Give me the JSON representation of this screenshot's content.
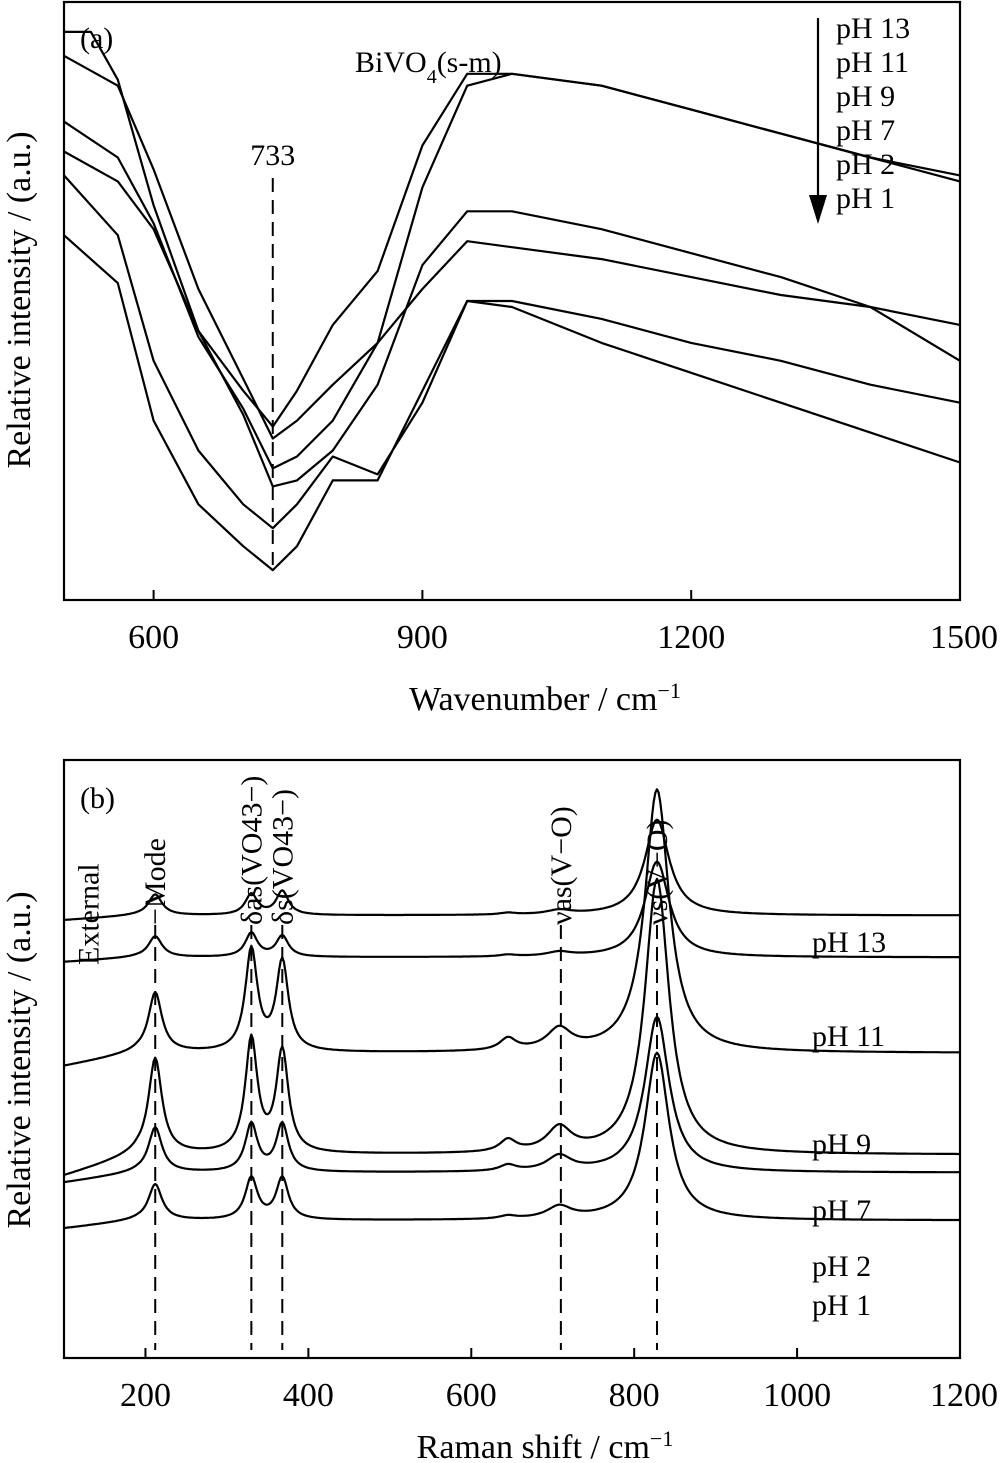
{
  "chart_data": [
    {
      "panel_label": "(a)",
      "type": "line",
      "title": "BiVO4(s-m)",
      "xlabel": "Wavenumber / cm−1",
      "ylabel": "Relative intensity / (a.u.)",
      "xlim": [
        500,
        1500
      ],
      "xticks": [
        "600",
        "900",
        "1200",
        "1500"
      ],
      "y_ticks_shown": false,
      "legend_arrow": [
        "pH 13",
        "pH 11",
        "pH 9",
        "pH 7",
        "pH 2",
        "pH 1"
      ],
      "annotations": [
        {
          "text": "733",
          "x": 733
        }
      ],
      "series": [
        {
          "values": [
            [
              500,
              0.95
            ],
            [
              530,
              0.95
            ],
            [
              560,
              0.87
            ],
            [
              600,
              0.66
            ],
            [
              650,
              0.45
            ],
            [
              700,
              0.35
            ],
            [
              733,
              0.29
            ],
            [
              760,
              0.35
            ],
            [
              800,
              0.46
            ],
            [
              850,
              0.55
            ],
            [
              900,
              0.76
            ],
            [
              950,
              0.88
            ],
            [
              1000,
              0.88
            ],
            [
              1100,
              0.86
            ],
            [
              1200,
              0.82
            ],
            [
              1300,
              0.78
            ],
            [
              1400,
              0.74
            ],
            [
              1500,
              0.71
            ]
          ]
        },
        {
          "values": [
            [
              500,
              0.91
            ],
            [
              560,
              0.86
            ],
            [
              600,
              0.72
            ],
            [
              650,
              0.52
            ],
            [
              700,
              0.37
            ],
            [
              733,
              0.27
            ],
            [
              760,
              0.3
            ],
            [
              800,
              0.36
            ],
            [
              850,
              0.43
            ],
            [
              900,
              0.69
            ],
            [
              950,
              0.86
            ],
            [
              1000,
              0.88
            ],
            [
              1100,
              0.86
            ],
            [
              1200,
              0.82
            ],
            [
              1300,
              0.78
            ],
            [
              1400,
              0.74
            ],
            [
              1500,
              0.7
            ]
          ]
        },
        {
          "values": [
            [
              500,
              0.8
            ],
            [
              560,
              0.74
            ],
            [
              600,
              0.63
            ],
            [
              650,
              0.44
            ],
            [
              700,
              0.32
            ],
            [
              733,
              0.22
            ],
            [
              760,
              0.24
            ],
            [
              800,
              0.3
            ],
            [
              850,
              0.43
            ],
            [
              900,
              0.52
            ],
            [
              950,
              0.6
            ],
            [
              1000,
              0.59
            ],
            [
              1100,
              0.57
            ],
            [
              1200,
              0.54
            ],
            [
              1300,
              0.51
            ],
            [
              1400,
              0.49
            ],
            [
              1500,
              0.46
            ]
          ]
        },
        {
          "values": [
            [
              500,
              0.75
            ],
            [
              560,
              0.7
            ],
            [
              600,
              0.62
            ],
            [
              650,
              0.45
            ],
            [
              700,
              0.31
            ],
            [
              733,
              0.19
            ],
            [
              760,
              0.2
            ],
            [
              800,
              0.25
            ],
            [
              850,
              0.36
            ],
            [
              900,
              0.56
            ],
            [
              950,
              0.65
            ],
            [
              1000,
              0.65
            ],
            [
              1100,
              0.62
            ],
            [
              1200,
              0.58
            ],
            [
              1300,
              0.54
            ],
            [
              1400,
              0.49
            ],
            [
              1500,
              0.4
            ]
          ]
        },
        {
          "values": [
            [
              500,
              0.71
            ],
            [
              560,
              0.61
            ],
            [
              600,
              0.4
            ],
            [
              650,
              0.25
            ],
            [
              700,
              0.16
            ],
            [
              733,
              0.12
            ],
            [
              760,
              0.16
            ],
            [
              800,
              0.24
            ],
            [
              850,
              0.21
            ],
            [
              900,
              0.33
            ],
            [
              950,
              0.5
            ],
            [
              1000,
              0.5
            ],
            [
              1100,
              0.47
            ],
            [
              1200,
              0.43
            ],
            [
              1300,
              0.4
            ],
            [
              1400,
              0.36
            ],
            [
              1500,
              0.33
            ]
          ]
        },
        {
          "values": [
            [
              500,
              0.61
            ],
            [
              560,
              0.53
            ],
            [
              600,
              0.3
            ],
            [
              650,
              0.16
            ],
            [
              700,
              0.09
            ],
            [
              733,
              0.05
            ],
            [
              760,
              0.09
            ],
            [
              800,
              0.2
            ],
            [
              850,
              0.2
            ],
            [
              900,
              0.35
            ],
            [
              950,
              0.5
            ],
            [
              1000,
              0.49
            ],
            [
              1100,
              0.43
            ],
            [
              1200,
              0.38
            ],
            [
              1300,
              0.33
            ],
            [
              1400,
              0.28
            ],
            [
              1500,
              0.23
            ]
          ]
        }
      ]
    },
    {
      "panel_label": "(b)",
      "type": "line",
      "xlabel": "Raman shift / cm−1",
      "ylabel": "Relative intensity / (a.u.)",
      "xlim": [
        100,
        1200
      ],
      "xticks": [
        "200",
        "400",
        "600",
        "800",
        "1000",
        "1200"
      ],
      "y_ticks_shown": false,
      "peak_labels": [
        {
          "text": "External",
          "x": 130
        },
        {
          "text": "−Mode",
          "x": 212
        },
        {
          "text": "δas(VO43−)",
          "x": 330
        },
        {
          "text": "δs(VO43−)",
          "x": 368
        },
        {
          "text": "νas(V−O)",
          "x": 710
        },
        {
          "text": "νs(V−O)",
          "x": 828
        }
      ],
      "series_labels": [
        "pH 13",
        "pH 11",
        "pH 9",
        "pH 7",
        "pH 2",
        "pH 1"
      ],
      "peaks": [
        {
          "center": 212,
          "width": 10
        },
        {
          "center": 330,
          "width": 9
        },
        {
          "center": 368,
          "width": 9
        },
        {
          "center": 645,
          "width": 12
        },
        {
          "center": 708,
          "width": 18
        },
        {
          "center": 828,
          "width": 18
        }
      ],
      "series": [
        {
          "name": "pH 13",
          "baseline": 0.74,
          "amplitudes": [
            0.035,
            0.035,
            0.04,
            0.003,
            0.007,
            0.16
          ]
        },
        {
          "name": "pH 11",
          "baseline": 0.67,
          "amplitudes": [
            0.035,
            0.04,
            0.035,
            0.003,
            0.007,
            0.16
          ]
        },
        {
          "name": "pH 9",
          "baseline": 0.51,
          "amplitudes": [
            0.1,
            0.17,
            0.15,
            0.02,
            0.035,
            0.44
          ]
        },
        {
          "name": "pH 7",
          "baseline": 0.34,
          "amplitudes": [
            0.16,
            0.19,
            0.17,
            0.02,
            0.04,
            0.46
          ]
        },
        {
          "name": "pH 2",
          "baseline": 0.31,
          "amplitudes": [
            0.075,
            0.08,
            0.08,
            0.01,
            0.025,
            0.26
          ]
        },
        {
          "name": "pH 1",
          "baseline": 0.23,
          "amplitudes": [
            0.06,
            0.07,
            0.07,
            0.005,
            0.02,
            0.28
          ]
        }
      ]
    }
  ]
}
